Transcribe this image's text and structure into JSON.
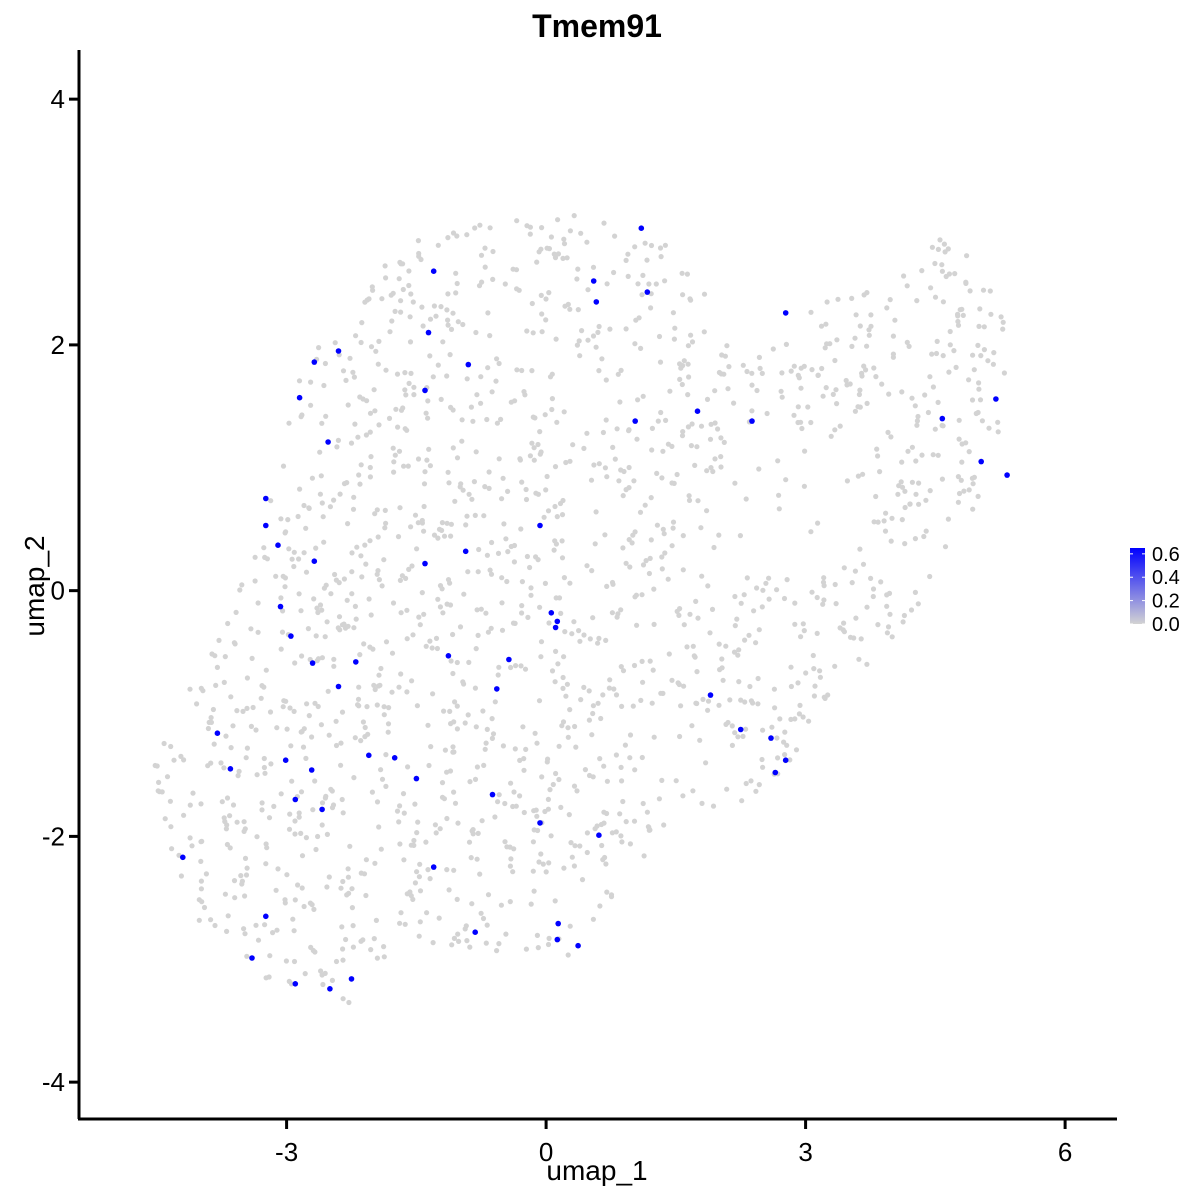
{
  "chart_data": {
    "type": "scatter",
    "title": "Tmem91",
    "xlabel": "umap_1",
    "ylabel": "umap_2",
    "xlim": [
      -5.4,
      6.6
    ],
    "ylim": [
      -4.3,
      4.4
    ],
    "x_ticks": [
      -3,
      0,
      3,
      6
    ],
    "x_tick_labels": [
      "-3",
      "0",
      "3",
      "6"
    ],
    "y_ticks": [
      -4,
      -2,
      0,
      2,
      4
    ],
    "y_tick_labels": [
      "-4",
      "-2",
      "0",
      "2",
      "4"
    ],
    "grid": false,
    "colors": {
      "low": "#d3d3d3",
      "high": "#0000ff"
    },
    "legend": {
      "position": "right",
      "type": "colorbar",
      "range": [
        0.0,
        0.65
      ],
      "ticks": [
        0.0,
        0.2,
        0.4,
        0.6
      ],
      "tick_labels": [
        "0.0",
        "0.2",
        "0.4",
        "0.6"
      ]
    },
    "expressing_points": [
      [
        1.1,
        2.95
      ],
      [
        0.55,
        2.52
      ],
      [
        1.17,
        2.43
      ],
      [
        0.58,
        2.35
      ],
      [
        -1.3,
        2.6
      ],
      [
        2.77,
        2.26
      ],
      [
        -1.36,
        2.1
      ],
      [
        -2.68,
        1.86
      ],
      [
        -2.4,
        1.95
      ],
      [
        -0.9,
        1.84
      ],
      [
        -2.85,
        1.57
      ],
      [
        -1.4,
        1.63
      ],
      [
        1.75,
        1.46
      ],
      [
        1.03,
        1.38
      ],
      [
        2.38,
        1.38
      ],
      [
        -2.52,
        1.21
      ],
      [
        -3.24,
        0.75
      ],
      [
        -3.24,
        0.53
      ],
      [
        -3.1,
        0.37
      ],
      [
        -2.68,
        0.24
      ],
      [
        -1.4,
        0.22
      ],
      [
        -0.93,
        0.32
      ],
      [
        -0.07,
        0.53
      ],
      [
        4.58,
        1.4
      ],
      [
        5.2,
        1.56
      ],
      [
        5.03,
        1.05
      ],
      [
        5.33,
        0.94
      ],
      [
        0.06,
        -0.18
      ],
      [
        0.13,
        -0.25
      ],
      [
        0.11,
        -0.3
      ],
      [
        -3.07,
        -0.13
      ],
      [
        -2.95,
        -0.37
      ],
      [
        -2.7,
        -0.59
      ],
      [
        -2.2,
        -0.58
      ],
      [
        -1.13,
        -0.53
      ],
      [
        -0.43,
        -0.56
      ],
      [
        -0.57,
        -0.8
      ],
      [
        -2.4,
        -0.78
      ],
      [
        1.9,
        -0.85
      ],
      [
        -3.8,
        -1.16
      ],
      [
        -3.65,
        -1.45
      ],
      [
        -3.01,
        -1.38
      ],
      [
        -2.71,
        -1.46
      ],
      [
        -2.9,
        -1.7
      ],
      [
        -2.59,
        -1.78
      ],
      [
        -2.05,
        -1.34
      ],
      [
        -1.75,
        -1.36
      ],
      [
        -1.5,
        -1.53
      ],
      [
        -0.62,
        -1.66
      ],
      [
        -0.07,
        -1.89
      ],
      [
        0.61,
        -1.99
      ],
      [
        2.25,
        -1.13
      ],
      [
        2.6,
        -1.2
      ],
      [
        2.65,
        -1.48
      ],
      [
        2.77,
        -1.38
      ],
      [
        -4.2,
        -2.17
      ],
      [
        -1.3,
        -2.25
      ],
      [
        -3.24,
        -2.65
      ],
      [
        -3.4,
        -2.99
      ],
      [
        -2.9,
        -3.2
      ],
      [
        -2.5,
        -3.24
      ],
      [
        -2.25,
        -3.16
      ],
      [
        -0.82,
        -2.78
      ],
      [
        0.14,
        -2.71
      ],
      [
        0.13,
        -2.84
      ],
      [
        0.37,
        -2.89
      ]
    ]
  }
}
